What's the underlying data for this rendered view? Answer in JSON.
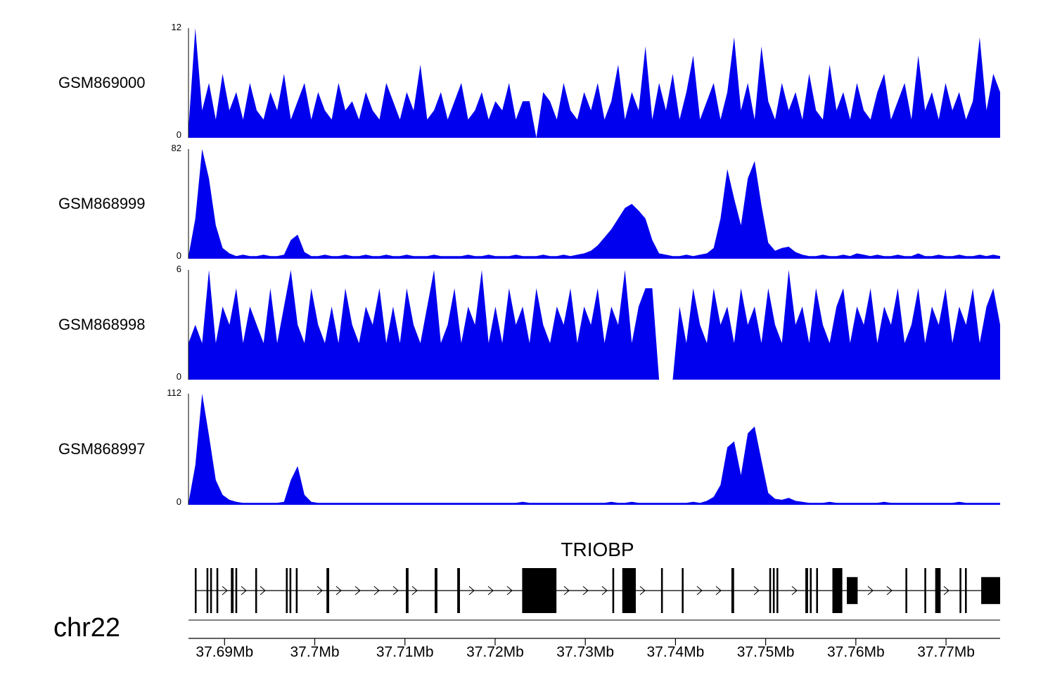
{
  "chromosome_label": "chr22",
  "gene_label": "TRIOBP",
  "tracks": [
    {
      "label": "GSM869000",
      "ymax_label": "12",
      "ymin_label": "0"
    },
    {
      "label": "GSM868999",
      "ymax_label": "82",
      "ymin_label": "0"
    },
    {
      "label": "GSM868998",
      "ymax_label": "6",
      "ymin_label": "0"
    },
    {
      "label": "GSM868997",
      "ymax_label": "112",
      "ymin_label": "0"
    }
  ],
  "axis": {
    "unit": "Mb",
    "ticks": [
      {
        "label": "37.69Mb",
        "mb": 37.69
      },
      {
        "label": "37.7Mb",
        "mb": 37.7
      },
      {
        "label": "37.71Mb",
        "mb": 37.71
      },
      {
        "label": "37.72Mb",
        "mb": 37.72
      },
      {
        "label": "37.73Mb",
        "mb": 37.73
      },
      {
        "label": "37.74Mb",
        "mb": 37.74
      },
      {
        "label": "37.75Mb",
        "mb": 37.75
      },
      {
        "label": "37.76Mb",
        "mb": 37.76
      },
      {
        "label": "37.77Mb",
        "mb": 37.77
      }
    ]
  },
  "chart_data": {
    "type": "area",
    "color": "#0000ee",
    "x_unit": "Mb",
    "x_start_mb": 37.686,
    "x_end_mb": 37.776,
    "series": [
      {
        "name": "GSM869000",
        "ylim": [
          0,
          12
        ],
        "values": [
          1,
          12,
          3,
          6,
          2,
          7,
          3,
          5,
          2,
          6,
          3,
          2,
          5,
          3,
          7,
          2,
          4,
          6,
          2,
          5,
          3,
          2,
          6,
          3,
          4,
          2,
          5,
          3,
          2,
          6,
          4,
          2,
          5,
          3,
          8,
          2,
          3,
          5,
          2,
          4,
          6,
          2,
          3,
          5,
          2,
          4,
          3,
          6,
          2,
          4,
          4,
          0,
          5,
          4,
          2,
          6,
          3,
          2,
          5,
          3,
          6,
          2,
          4,
          8,
          2,
          5,
          3,
          10,
          2,
          6,
          3,
          7,
          2,
          5,
          9,
          2,
          4,
          6,
          2,
          5,
          11,
          3,
          6,
          2,
          10,
          4,
          2,
          6,
          3,
          5,
          2,
          7,
          3,
          2,
          8,
          3,
          5,
          2,
          6,
          3,
          2,
          5,
          7,
          2,
          4,
          6,
          2,
          9,
          3,
          5,
          2,
          6,
          3,
          5,
          2,
          4,
          11,
          3,
          7,
          5
        ]
      },
      {
        "name": "GSM868999",
        "ylim": [
          0,
          82
        ],
        "values": [
          2,
          30,
          82,
          60,
          25,
          8,
          4,
          2,
          3,
          2,
          2,
          3,
          2,
          2,
          3,
          14,
          18,
          5,
          2,
          2,
          3,
          2,
          2,
          3,
          2,
          2,
          3,
          2,
          2,
          3,
          2,
          2,
          3,
          2,
          2,
          2,
          3,
          2,
          2,
          2,
          2,
          3,
          2,
          2,
          3,
          2,
          2,
          2,
          3,
          2,
          2,
          2,
          3,
          2,
          2,
          3,
          2,
          3,
          4,
          6,
          10,
          16,
          22,
          30,
          38,
          41,
          36,
          30,
          14,
          4,
          3,
          2,
          2,
          3,
          2,
          3,
          4,
          8,
          30,
          67,
          45,
          25,
          60,
          73,
          40,
          12,
          6,
          8,
          9,
          5,
          3,
          2,
          2,
          3,
          2,
          2,
          3,
          2,
          4,
          3,
          2,
          3,
          2,
          2,
          3,
          2,
          2,
          4,
          2,
          2,
          3,
          2,
          2,
          3,
          2,
          2,
          3,
          2,
          3,
          2
        ]
      },
      {
        "name": "GSM868998",
        "ylim": [
          0,
          6
        ],
        "values": [
          2,
          3,
          2,
          6,
          2,
          4,
          3,
          5,
          2,
          4,
          3,
          2,
          5,
          2,
          4,
          6,
          3,
          2,
          5,
          3,
          2,
          4,
          2,
          5,
          3,
          2,
          4,
          3,
          5,
          2,
          4,
          2,
          5,
          3,
          2,
          4,
          6,
          2,
          3,
          5,
          2,
          4,
          3,
          6,
          2,
          4,
          2,
          5,
          3,
          4,
          2,
          5,
          3,
          2,
          4,
          3,
          5,
          2,
          4,
          3,
          5,
          2,
          4,
          3,
          6,
          2,
          4,
          5,
          5,
          0,
          0,
          0,
          4,
          2,
          5,
          3,
          2,
          5,
          3,
          4,
          2,
          5,
          3,
          4,
          2,
          5,
          3,
          2,
          6,
          3,
          4,
          2,
          5,
          3,
          2,
          4,
          5,
          2,
          4,
          3,
          5,
          2,
          4,
          3,
          5,
          2,
          3,
          5,
          2,
          4,
          3,
          5,
          2,
          4,
          3,
          5,
          2,
          4,
          5,
          3
        ]
      },
      {
        "name": "GSM868997",
        "ylim": [
          0,
          112
        ],
        "values": [
          2,
          40,
          112,
          70,
          25,
          10,
          5,
          3,
          2,
          2,
          2,
          2,
          2,
          2,
          3,
          25,
          39,
          10,
          3,
          2,
          2,
          2,
          2,
          2,
          2,
          2,
          2,
          2,
          2,
          2,
          2,
          2,
          2,
          2,
          2,
          2,
          2,
          2,
          2,
          2,
          2,
          2,
          2,
          2,
          2,
          2,
          2,
          2,
          2,
          3,
          2,
          2,
          2,
          2,
          2,
          2,
          2,
          2,
          2,
          2,
          2,
          2,
          3,
          2,
          2,
          3,
          2,
          2,
          2,
          2,
          2,
          2,
          2,
          2,
          3,
          2,
          4,
          8,
          20,
          58,
          64,
          30,
          72,
          79,
          45,
          12,
          6,
          5,
          7,
          4,
          3,
          2,
          2,
          2,
          3,
          2,
          2,
          2,
          2,
          2,
          2,
          2,
          3,
          2,
          2,
          2,
          2,
          2,
          2,
          2,
          2,
          2,
          2,
          3,
          2,
          2,
          2,
          2,
          2,
          2
        ]
      }
    ],
    "gene_track": {
      "name": "TRIOBP",
      "chromosome": "chr22",
      "strand": "+",
      "exons_mb": [
        [
          37.6867,
          37.6869,
          1
        ],
        [
          37.688,
          37.6882,
          1
        ],
        [
          37.6884,
          37.6886,
          1
        ],
        [
          37.6891,
          37.6893,
          1
        ],
        [
          37.6907,
          37.691,
          1
        ],
        [
          37.6912,
          37.6914,
          1
        ],
        [
          37.6934,
          37.6936,
          1
        ],
        [
          37.6968,
          37.697,
          1
        ],
        [
          37.6972,
          37.6974,
          1
        ],
        [
          37.6979,
          37.6981,
          1
        ],
        [
          37.7013,
          37.7016,
          1
        ],
        [
          37.7101,
          37.7104,
          1
        ],
        [
          37.7133,
          37.7136,
          1
        ],
        [
          37.7158,
          37.7161,
          1
        ],
        [
          37.723,
          37.7268,
          1
        ],
        [
          37.733,
          37.7332,
          1
        ],
        [
          37.7341,
          37.7356,
          1
        ],
        [
          37.7384,
          37.7386,
          1
        ],
        [
          37.7407,
          37.7409,
          1
        ],
        [
          37.7462,
          37.7465,
          1
        ],
        [
          37.7504,
          37.7506,
          1
        ],
        [
          37.7508,
          37.751,
          1
        ],
        [
          37.7512,
          37.7514,
          1
        ],
        [
          37.7544,
          37.7547,
          1
        ],
        [
          37.7549,
          37.7551,
          1
        ],
        [
          37.7556,
          37.7558,
          1
        ],
        [
          37.7574,
          37.7585,
          1
        ],
        [
          37.759,
          37.7602,
          0.6
        ],
        [
          37.7655,
          37.7657,
          1
        ],
        [
          37.7676,
          37.7678,
          1
        ],
        [
          37.7688,
          37.7694,
          1
        ],
        [
          37.7715,
          37.7717,
          1
        ],
        [
          37.7721,
          37.7723,
          1
        ],
        [
          37.7739,
          37.776,
          0.6
        ]
      ]
    },
    "axis_ticks_mb": [
      37.69,
      37.7,
      37.71,
      37.72,
      37.73,
      37.74,
      37.75,
      37.76,
      37.77
    ]
  }
}
